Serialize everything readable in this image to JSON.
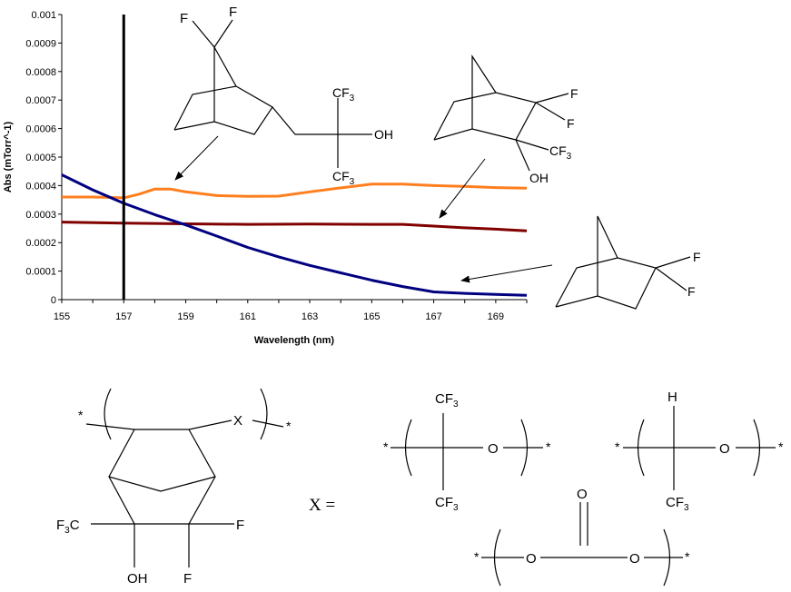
{
  "chart_data": {
    "type": "line",
    "title": "",
    "xlabel": "Wavelength (nm)",
    "ylabel": "Abs (mTorr^-1)",
    "xlim": [
      155,
      170
    ],
    "ylim": [
      0,
      0.001
    ],
    "x_ticks": [
      "155",
      "157",
      "159",
      "161",
      "163",
      "165",
      "167",
      "169"
    ],
    "y_ticks": [
      "0",
      "0.0001",
      "0.0002",
      "0.0003",
      "0.0004",
      "0.0005",
      "0.0006",
      "0.0007",
      "0.0008",
      "0.0009",
      "0.001"
    ],
    "grid": false,
    "legend": "none",
    "vertical_marker_x": 157,
    "series": [
      {
        "color": "#FF7F1F",
        "x": [
          155,
          156,
          157,
          157.5,
          158,
          158.5,
          159,
          160,
          161,
          162,
          163,
          164,
          165,
          166,
          167,
          168,
          169,
          170
        ],
        "y": [
          0.00036,
          0.00036,
          0.000357,
          0.00037,
          0.000388,
          0.000388,
          0.000378,
          0.000365,
          0.000362,
          0.000363,
          0.000378,
          0.000392,
          0.000405,
          0.000405,
          0.0004,
          0.000397,
          0.000393,
          0.000391
        ]
      },
      {
        "color": "#800000",
        "x": [
          155,
          157,
          159,
          161,
          163,
          165,
          166,
          167,
          168,
          169,
          170
        ],
        "y": [
          0.000272,
          0.000268,
          0.000266,
          0.000264,
          0.000265,
          0.000264,
          0.000264,
          0.000258,
          0.000252,
          0.000247,
          0.000241
        ]
      },
      {
        "color": "#000080",
        "x": [
          155,
          156,
          157,
          158,
          159,
          160,
          161,
          162,
          163,
          164,
          165,
          166,
          167,
          168,
          169,
          170
        ],
        "y": [
          0.000438,
          0.000385,
          0.000338,
          0.000298,
          0.000262,
          0.000223,
          0.000183,
          0.00015,
          0.00012,
          9.4e-05,
          6.8e-05,
          4.6e-05,
          2.7e-05,
          2.2e-05,
          1.8e-05,
          1.5e-05
        ]
      }
    ]
  },
  "structures": {
    "top_left": {
      "f1": "F",
      "f2": "F",
      "cf3_top": "CF",
      "cf3_bottom": "CF",
      "oh": "OH",
      "sub3": "3"
    },
    "top_middle": {
      "f1": "F",
      "f2": "F",
      "cf3": "CF",
      "oh": "OH",
      "sub3": "3"
    },
    "right": {
      "f1": "F",
      "f2": "F"
    },
    "polymer": {
      "star": "*",
      "x": "X",
      "f3c": "F",
      "f3c_sub": "3",
      "f3c_c": "C",
      "oh": "OH",
      "f_right": "F",
      "f_bottom": "F"
    },
    "x_equals": "X =",
    "unit_a": {
      "star": "*",
      "cf3_top": "CF",
      "cf3_bottom": "CF",
      "o": "O",
      "sub3": "3"
    },
    "unit_b": {
      "star": "*",
      "h": "H",
      "cf3_bottom": "CF",
      "o": "O",
      "sub3": "3"
    },
    "unit_c": {
      "star": "*",
      "o_top": "O",
      "o_left": "O",
      "o_right": "O"
    }
  }
}
